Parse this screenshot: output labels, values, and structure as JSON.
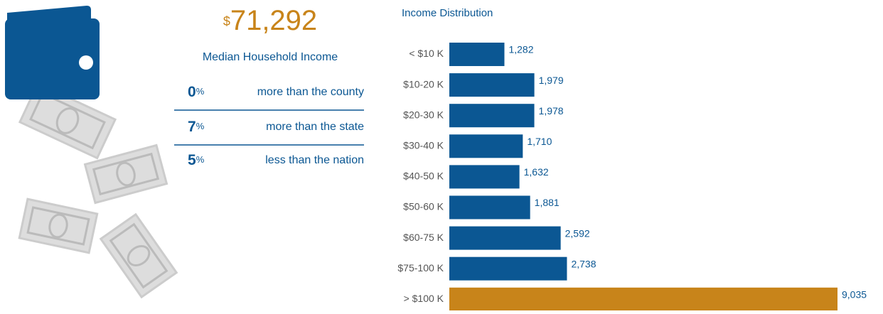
{
  "median": {
    "currency": "$",
    "value": "71,292",
    "label": "Median Household Income"
  },
  "comparisons": [
    {
      "value": "0",
      "unit": "%",
      "text": "more than the county"
    },
    {
      "value": "7",
      "unit": "%",
      "text": "more than the state"
    },
    {
      "value": "5",
      "unit": "%",
      "text": "less than the nation"
    }
  ],
  "chart_data": {
    "type": "hbar",
    "title": "Income Distribution",
    "categories": [
      "< $10 K",
      "$10-20 K",
      "$20-30 K",
      "$30-40 K",
      "$40-50 K",
      "$50-60 K",
      "$60-75 K",
      "$75-100 K",
      "> $100 K"
    ],
    "values": [
      1282,
      1979,
      1978,
      1710,
      1632,
      1881,
      2592,
      2738,
      9035
    ],
    "value_labels": [
      "1,282",
      "1,979",
      "1,978",
      "1,710",
      "1,632",
      "1,881",
      "2,592",
      "2,738",
      "9,035"
    ],
    "colors": [
      "#0b5793",
      "#0b5793",
      "#0b5793",
      "#0b5793",
      "#0b5793",
      "#0b5793",
      "#0b5793",
      "#0b5793",
      "#c8841a"
    ]
  }
}
